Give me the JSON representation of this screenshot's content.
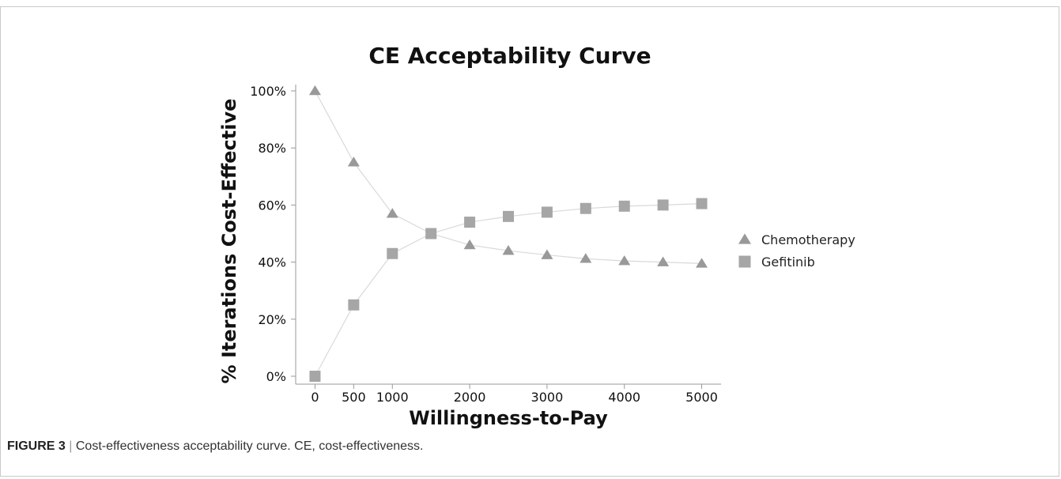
{
  "caption": {
    "label": "FIGURE 3",
    "separator": "|",
    "text": "Cost-effectiveness acceptability curve. CE, cost-effectiveness."
  },
  "chart_data": {
    "type": "line",
    "title": "CE Acceptability Curve",
    "xlabel": "Willingness-to-Pay",
    "ylabel": "% Iterations Cost-Effective",
    "x": [
      0,
      500,
      1000,
      1500,
      2000,
      2500,
      3000,
      3500,
      4000,
      4500,
      5000
    ],
    "x_tick_labels": [
      "0",
      "500",
      "1000",
      "2000",
      "3000",
      "4000",
      "5000"
    ],
    "x_tick_values": [
      0,
      500,
      1000,
      2000,
      3000,
      4000,
      5000
    ],
    "xlim": [
      -250,
      5250
    ],
    "ylim": [
      0,
      100
    ],
    "y_tick_labels": [
      "0%",
      "20%",
      "40%",
      "60%",
      "80%",
      "100%"
    ],
    "y_tick_values": [
      0,
      20,
      40,
      60,
      80,
      100
    ],
    "grid": false,
    "legend_position": "right",
    "series": [
      {
        "name": "Chemotherapy",
        "marker": "triangle",
        "color": "#999999",
        "values": [
          100,
          75,
          57,
          50,
          46,
          44,
          42.5,
          41.2,
          40.4,
          40,
          39.5
        ]
      },
      {
        "name": "Gefitinib",
        "marker": "square",
        "color": "#a6a6a6",
        "values": [
          0,
          25,
          43,
          50,
          54,
          56,
          57.5,
          58.8,
          59.6,
          60,
          60.5
        ]
      }
    ],
    "line_color": "#d9d9d9",
    "axis_color": "#9a9a9a"
  }
}
